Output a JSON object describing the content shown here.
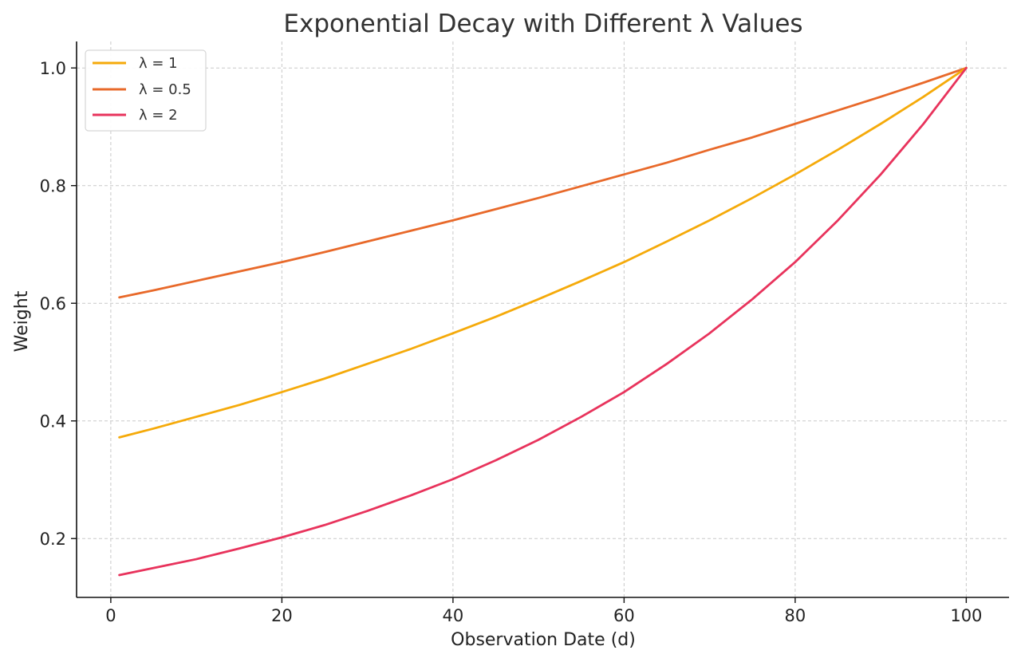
{
  "chart_data": {
    "type": "line",
    "title": "Exponential Decay with Different λ Values",
    "xlabel": "Observation Date (d)",
    "ylabel": "Weight",
    "xlim": [
      -4,
      105
    ],
    "ylim": [
      0.1,
      1.045
    ],
    "x_ticks": [
      0,
      20,
      40,
      60,
      80,
      100
    ],
    "y_ticks": [
      0.2,
      0.4,
      0.6,
      0.8,
      1.0
    ],
    "x_tick_labels": [
      "0",
      "20",
      "40",
      "60",
      "80",
      "100"
    ],
    "y_tick_labels": [
      "0.2",
      "0.4",
      "0.6",
      "0.8",
      "1.0"
    ],
    "grid": true,
    "legend_position": "upper-left",
    "x": [
      1,
      5,
      10,
      15,
      20,
      25,
      30,
      35,
      40,
      45,
      50,
      55,
      60,
      65,
      70,
      75,
      80,
      85,
      90,
      95,
      100
    ],
    "series": [
      {
        "name": "λ = 1",
        "color": "#F5AA0A",
        "values": [
          0.372,
          0.387,
          0.407,
          0.427,
          0.449,
          0.472,
          0.497,
          0.522,
          0.549,
          0.577,
          0.607,
          0.638,
          0.67,
          0.705,
          0.741,
          0.779,
          0.819,
          0.861,
          0.905,
          0.951,
          1.0
        ]
      },
      {
        "name": "λ = 0.5",
        "color": "#E8692A",
        "values": [
          0.61,
          0.622,
          0.638,
          0.654,
          0.67,
          0.687,
          0.705,
          0.723,
          0.741,
          0.76,
          0.779,
          0.799,
          0.819,
          0.839,
          0.861,
          0.882,
          0.905,
          0.928,
          0.951,
          0.975,
          1.0
        ]
      },
      {
        "name": "λ = 2",
        "color": "#E8335C",
        "values": [
          0.138,
          0.15,
          0.165,
          0.183,
          0.202,
          0.223,
          0.247,
          0.273,
          0.301,
          0.333,
          0.368,
          0.407,
          0.449,
          0.497,
          0.549,
          0.607,
          0.67,
          0.741,
          0.819,
          0.905,
          1.0
        ]
      }
    ]
  }
}
